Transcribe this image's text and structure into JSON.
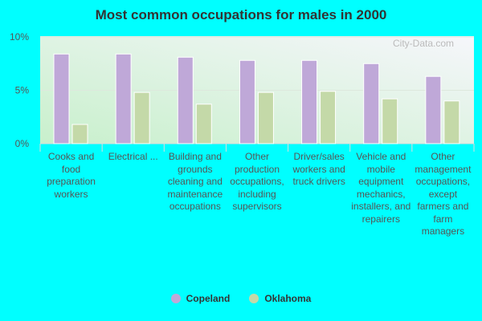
{
  "chart_data": {
    "type": "bar",
    "title": "Most common occupations for males in 2000",
    "categories": [
      "Cooks and food preparation workers",
      "Electrical ...",
      "Building and grounds cleaning and maintenance occupations",
      "Other production occupations, including supervisors",
      "Driver/sales workers and truck drivers",
      "Vehicle and mobile equipment mechanics, installers, and repairers",
      "Other management occupations, except farmers and farm managers"
    ],
    "series": [
      {
        "name": "Copeland",
        "color": "#bfa8d8",
        "values": [
          8.4,
          8.4,
          8.1,
          7.8,
          7.8,
          7.5,
          6.3
        ]
      },
      {
        "name": "Oklahoma",
        "color": "#c4d9a8",
        "values": [
          1.8,
          4.8,
          3.7,
          4.8,
          4.9,
          4.2,
          4.0
        ]
      }
    ],
    "yticks": [
      "0%",
      "5%",
      "10%"
    ],
    "ylim": [
      0,
      10
    ],
    "grid": true,
    "legend_position": "bottom",
    "watermark": "City-Data.com"
  }
}
